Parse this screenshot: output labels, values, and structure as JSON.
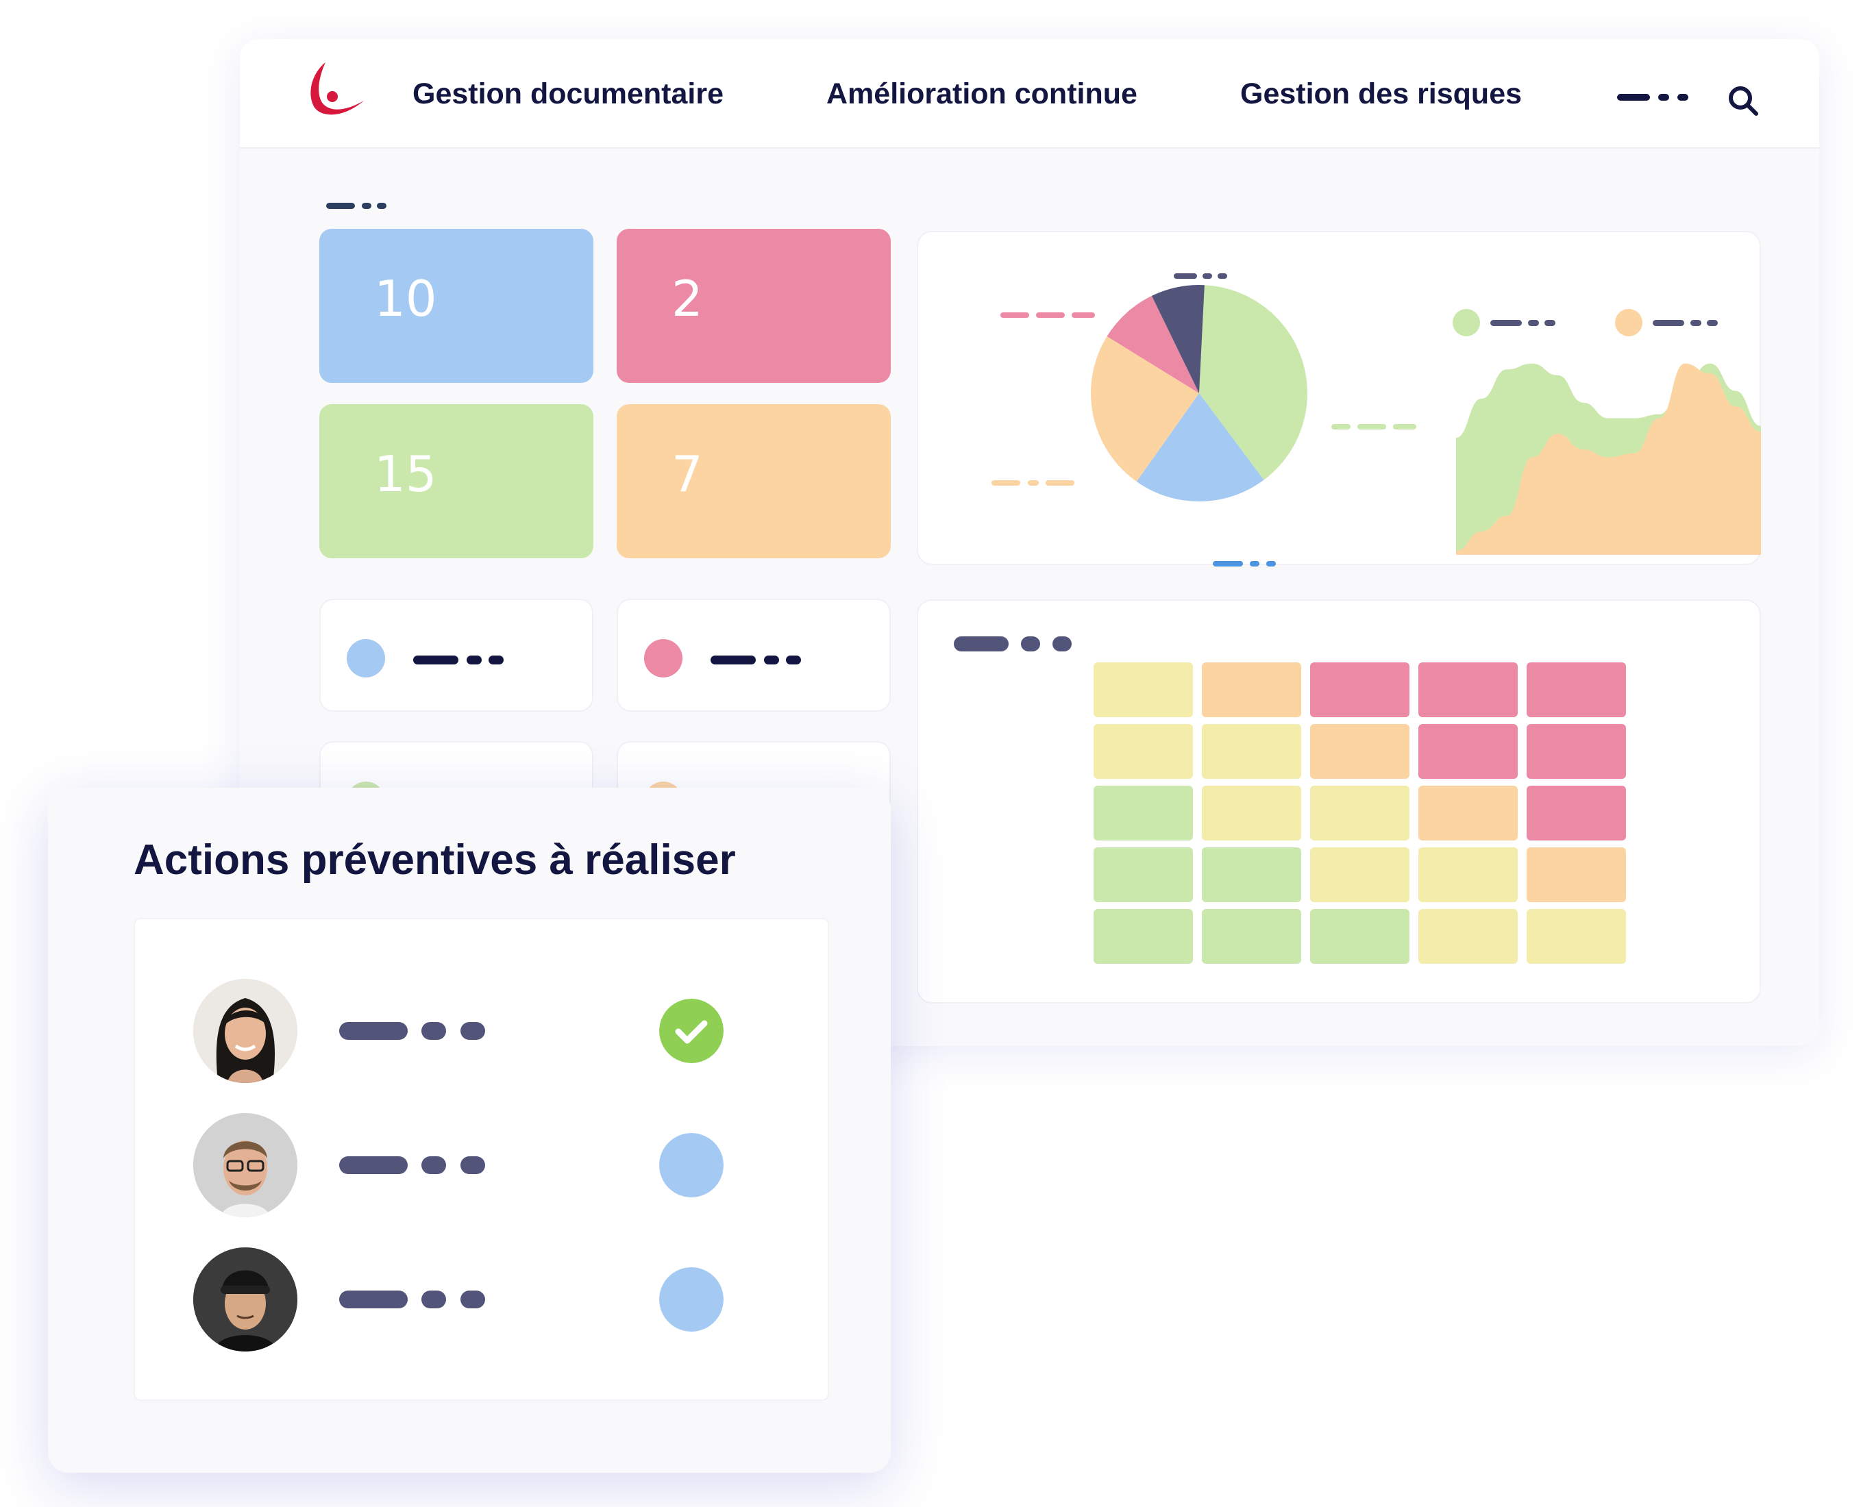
{
  "navbar": {
    "items": [
      {
        "label": "Gestion documentaire"
      },
      {
        "label": "Amélioration continue"
      },
      {
        "label": "Gestion des risques"
      }
    ],
    "logo_color": "#d6183c"
  },
  "stats": [
    {
      "value": "10",
      "color": "#a4c9f2"
    },
    {
      "value": "2",
      "color": "#ec8aa6"
    },
    {
      "value": "15",
      "color": "#cbe8ac"
    },
    {
      "value": "7",
      "color": "#fbd4a2"
    }
  ],
  "legend_cards": [
    {
      "color": "#a4c9f2"
    },
    {
      "color": "#ec8aa6"
    },
    {
      "color": "#cbe8ac"
    },
    {
      "color": "#fbd4a2"
    }
  ],
  "chart_data": [
    {
      "type": "pie",
      "slices": [
        {
          "value": 39,
          "color": "#cbe8ac"
        },
        {
          "value": 20,
          "color": "#a4c9f2"
        },
        {
          "value": 24,
          "color": "#fbd4a2"
        },
        {
          "value": 9,
          "color": "#ec8aa6"
        },
        {
          "value": 8,
          "color": "#525579"
        }
      ]
    },
    {
      "type": "area",
      "series": [
        {
          "color": "#cbe8ac",
          "values": [
            60,
            80,
            95,
            98,
            92,
            78,
            70,
            70,
            72,
            88,
            98,
            84,
            66
          ]
        },
        {
          "color": "#fbd4a2",
          "values": [
            2,
            12,
            20,
            50,
            62,
            54,
            50,
            52,
            70,
            98,
            93,
            76,
            63
          ]
        }
      ]
    },
    {
      "type": "heatmap",
      "rows": [
        [
          "#f3ecaa",
          "#fbd4a2",
          "#ec8aa6",
          "#ec8aa6",
          "#ec8aa6"
        ],
        [
          "#f3ecaa",
          "#f3ecaa",
          "#fbd4a2",
          "#ec8aa6",
          "#ec8aa6"
        ],
        [
          "#cbe8ac",
          "#f3ecaa",
          "#f3ecaa",
          "#fbd4a2",
          "#ec8aa6"
        ],
        [
          "#cbe8ac",
          "#cbe8ac",
          "#f3ecaa",
          "#f3ecaa",
          "#fbd4a2"
        ],
        [
          "#cbe8ac",
          "#cbe8ac",
          "#cbe8ac",
          "#f3ecaa",
          "#f3ecaa"
        ]
      ]
    }
  ],
  "actions": {
    "title": "Actions préventives à réaliser",
    "rows": [
      {
        "status": "done",
        "status_color": "#8fd054"
      },
      {
        "status": "pending",
        "status_color": "#a4c9f2"
      },
      {
        "status": "pending",
        "status_color": "#a4c9f2"
      }
    ]
  }
}
